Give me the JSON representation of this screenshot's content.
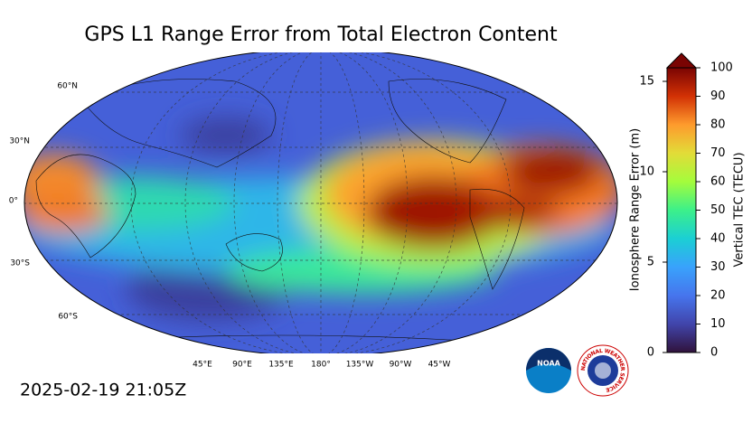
{
  "title": "GPS L1 Range Error from Total Electron Content",
  "timestamp": "2025-02-19 21:05Z",
  "map": {
    "lat_labels": [
      "60°N",
      "30°N",
      "0°",
      "30°S",
      "60°S"
    ],
    "lon_labels": [
      "45°E",
      "90°E",
      "135°E",
      "180°",
      "135°W",
      "90°W",
      "45°W"
    ]
  },
  "colorbar": {
    "left_label": "Ionosphere Range Error (m)",
    "right_label": "Vertical TEC (TECU)",
    "left_lim": [
      0,
      15.75
    ],
    "left_ticks": [
      0,
      5,
      10,
      15
    ],
    "right_lim": [
      0,
      100
    ],
    "right_ticks": [
      0,
      10,
      20,
      30,
      40,
      50,
      60,
      70,
      80,
      90,
      100
    ]
  },
  "logos": {
    "noaa": "NOAA",
    "nws": "NATIONAL WEATHER SERVICE"
  }
}
